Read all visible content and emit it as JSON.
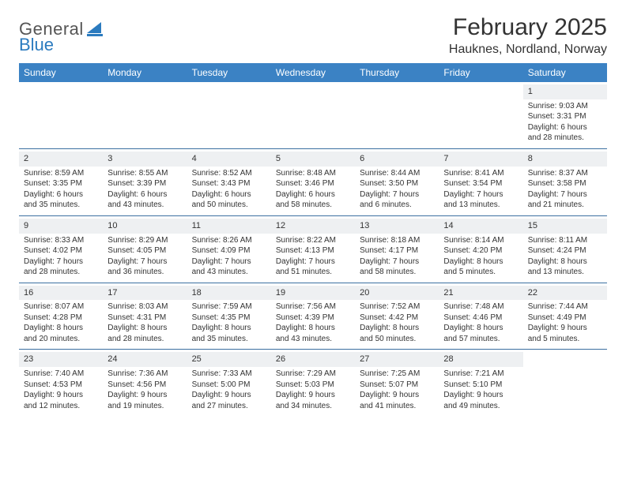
{
  "logo": {
    "text_general": "General",
    "text_blue": "Blue"
  },
  "header": {
    "month_title": "February 2025",
    "location": "Hauknes, Nordland, Norway"
  },
  "colors": {
    "header_bar": "#3b82c4",
    "week_divider": "#3b6fa0",
    "daynum_bg": "#eef0f2",
    "text": "#333333",
    "logo_gray": "#555555",
    "logo_blue": "#2b7bbf",
    "background": "#ffffff"
  },
  "typography": {
    "month_title_fontsize": 30,
    "location_fontsize": 16,
    "weekday_fontsize": 12,
    "daynum_fontsize": 11,
    "detail_fontsize": 10
  },
  "weekdays": [
    "Sunday",
    "Monday",
    "Tuesday",
    "Wednesday",
    "Thursday",
    "Friday",
    "Saturday"
  ],
  "weeks": [
    [
      {
        "empty": true
      },
      {
        "empty": true
      },
      {
        "empty": true
      },
      {
        "empty": true
      },
      {
        "empty": true
      },
      {
        "empty": true
      },
      {
        "day": "1",
        "sunrise": "Sunrise: 9:03 AM",
        "sunset": "Sunset: 3:31 PM",
        "daylight": "Daylight: 6 hours and 28 minutes."
      }
    ],
    [
      {
        "day": "2",
        "sunrise": "Sunrise: 8:59 AM",
        "sunset": "Sunset: 3:35 PM",
        "daylight": "Daylight: 6 hours and 35 minutes."
      },
      {
        "day": "3",
        "sunrise": "Sunrise: 8:55 AM",
        "sunset": "Sunset: 3:39 PM",
        "daylight": "Daylight: 6 hours and 43 minutes."
      },
      {
        "day": "4",
        "sunrise": "Sunrise: 8:52 AM",
        "sunset": "Sunset: 3:43 PM",
        "daylight": "Daylight: 6 hours and 50 minutes."
      },
      {
        "day": "5",
        "sunrise": "Sunrise: 8:48 AM",
        "sunset": "Sunset: 3:46 PM",
        "daylight": "Daylight: 6 hours and 58 minutes."
      },
      {
        "day": "6",
        "sunrise": "Sunrise: 8:44 AM",
        "sunset": "Sunset: 3:50 PM",
        "daylight": "Daylight: 7 hours and 6 minutes."
      },
      {
        "day": "7",
        "sunrise": "Sunrise: 8:41 AM",
        "sunset": "Sunset: 3:54 PM",
        "daylight": "Daylight: 7 hours and 13 minutes."
      },
      {
        "day": "8",
        "sunrise": "Sunrise: 8:37 AM",
        "sunset": "Sunset: 3:58 PM",
        "daylight": "Daylight: 7 hours and 21 minutes."
      }
    ],
    [
      {
        "day": "9",
        "sunrise": "Sunrise: 8:33 AM",
        "sunset": "Sunset: 4:02 PM",
        "daylight": "Daylight: 7 hours and 28 minutes."
      },
      {
        "day": "10",
        "sunrise": "Sunrise: 8:29 AM",
        "sunset": "Sunset: 4:05 PM",
        "daylight": "Daylight: 7 hours and 36 minutes."
      },
      {
        "day": "11",
        "sunrise": "Sunrise: 8:26 AM",
        "sunset": "Sunset: 4:09 PM",
        "daylight": "Daylight: 7 hours and 43 minutes."
      },
      {
        "day": "12",
        "sunrise": "Sunrise: 8:22 AM",
        "sunset": "Sunset: 4:13 PM",
        "daylight": "Daylight: 7 hours and 51 minutes."
      },
      {
        "day": "13",
        "sunrise": "Sunrise: 8:18 AM",
        "sunset": "Sunset: 4:17 PM",
        "daylight": "Daylight: 7 hours and 58 minutes."
      },
      {
        "day": "14",
        "sunrise": "Sunrise: 8:14 AM",
        "sunset": "Sunset: 4:20 PM",
        "daylight": "Daylight: 8 hours and 5 minutes."
      },
      {
        "day": "15",
        "sunrise": "Sunrise: 8:11 AM",
        "sunset": "Sunset: 4:24 PM",
        "daylight": "Daylight: 8 hours and 13 minutes."
      }
    ],
    [
      {
        "day": "16",
        "sunrise": "Sunrise: 8:07 AM",
        "sunset": "Sunset: 4:28 PM",
        "daylight": "Daylight: 8 hours and 20 minutes."
      },
      {
        "day": "17",
        "sunrise": "Sunrise: 8:03 AM",
        "sunset": "Sunset: 4:31 PM",
        "daylight": "Daylight: 8 hours and 28 minutes."
      },
      {
        "day": "18",
        "sunrise": "Sunrise: 7:59 AM",
        "sunset": "Sunset: 4:35 PM",
        "daylight": "Daylight: 8 hours and 35 minutes."
      },
      {
        "day": "19",
        "sunrise": "Sunrise: 7:56 AM",
        "sunset": "Sunset: 4:39 PM",
        "daylight": "Daylight: 8 hours and 43 minutes."
      },
      {
        "day": "20",
        "sunrise": "Sunrise: 7:52 AM",
        "sunset": "Sunset: 4:42 PM",
        "daylight": "Daylight: 8 hours and 50 minutes."
      },
      {
        "day": "21",
        "sunrise": "Sunrise: 7:48 AM",
        "sunset": "Sunset: 4:46 PM",
        "daylight": "Daylight: 8 hours and 57 minutes."
      },
      {
        "day": "22",
        "sunrise": "Sunrise: 7:44 AM",
        "sunset": "Sunset: 4:49 PM",
        "daylight": "Daylight: 9 hours and 5 minutes."
      }
    ],
    [
      {
        "day": "23",
        "sunrise": "Sunrise: 7:40 AM",
        "sunset": "Sunset: 4:53 PM",
        "daylight": "Daylight: 9 hours and 12 minutes."
      },
      {
        "day": "24",
        "sunrise": "Sunrise: 7:36 AM",
        "sunset": "Sunset: 4:56 PM",
        "daylight": "Daylight: 9 hours and 19 minutes."
      },
      {
        "day": "25",
        "sunrise": "Sunrise: 7:33 AM",
        "sunset": "Sunset: 5:00 PM",
        "daylight": "Daylight: 9 hours and 27 minutes."
      },
      {
        "day": "26",
        "sunrise": "Sunrise: 7:29 AM",
        "sunset": "Sunset: 5:03 PM",
        "daylight": "Daylight: 9 hours and 34 minutes."
      },
      {
        "day": "27",
        "sunrise": "Sunrise: 7:25 AM",
        "sunset": "Sunset: 5:07 PM",
        "daylight": "Daylight: 9 hours and 41 minutes."
      },
      {
        "day": "28",
        "sunrise": "Sunrise: 7:21 AM",
        "sunset": "Sunset: 5:10 PM",
        "daylight": "Daylight: 9 hours and 49 minutes."
      },
      {
        "empty": true
      }
    ]
  ]
}
